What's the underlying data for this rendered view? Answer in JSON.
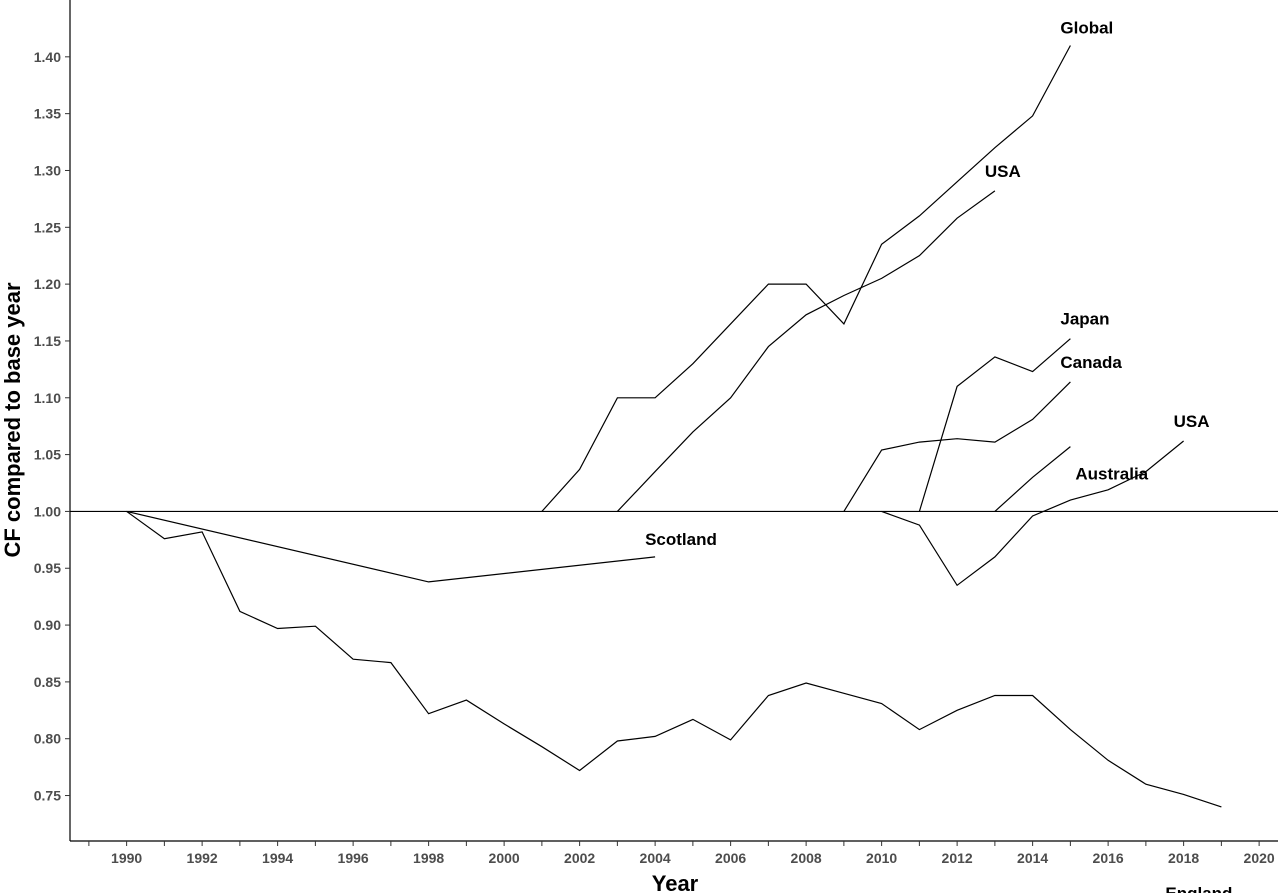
{
  "chart_data": {
    "type": "line",
    "title": "",
    "xlabel": "Year",
    "ylabel": "CF compared to base year",
    "xlim": [
      1988.5,
      2020.5
    ],
    "ylim": [
      0.71,
      1.45
    ],
    "x_ticks": [
      "1990",
      "1992",
      "1994",
      "1996",
      "1998",
      "2000",
      "2002",
      "2004",
      "2006",
      "2008",
      "2010",
      "2012",
      "2014",
      "2016",
      "2018",
      "2020"
    ],
    "y_ticks": [
      "0.75",
      "0.80",
      "0.85",
      "0.90",
      "0.95",
      "1.00",
      "1.05",
      "1.10",
      "1.15",
      "1.20",
      "1.25",
      "1.30",
      "1.35",
      "1.40"
    ],
    "reference_line": 1.0,
    "grid": false,
    "legend": "none",
    "series": [
      {
        "name": "Global",
        "x": [
          2001,
          2002,
          2003,
          2004,
          2005,
          2006,
          2007,
          2008,
          2009,
          2010,
          2011,
          2012,
          2013,
          2014,
          2015
        ],
        "y": [
          1.0,
          1.037,
          1.1,
          1.1,
          1.13,
          1.165,
          1.2,
          1.2,
          1.165,
          1.235,
          1.26,
          1.29,
          1.32,
          1.348,
          1.41
        ]
      },
      {
        "name": "USA",
        "x": [
          2003,
          2004,
          2005,
          2006,
          2007,
          2008,
          2009,
          2010,
          2011,
          2012,
          2013
        ],
        "y": [
          1.0,
          1.035,
          1.07,
          1.1,
          1.145,
          1.173,
          1.19,
          1.205,
          1.225,
          1.258,
          1.282
        ]
      },
      {
        "name": "Japan",
        "x": [
          2011,
          2012,
          2013,
          2014,
          2015
        ],
        "y": [
          1.0,
          1.11,
          1.136,
          1.123,
          1.152
        ]
      },
      {
        "name": "Canada",
        "x": [
          2009,
          2010,
          2011,
          2012,
          2013,
          2014,
          2015
        ],
        "y": [
          1.0,
          1.054,
          1.061,
          1.064,
          1.061,
          1.081,
          1.114
        ]
      },
      {
        "name": "Australia",
        "x": [
          2013,
          2014,
          2015
        ],
        "y": [
          1.0,
          1.03,
          1.057
        ]
      },
      {
        "name": "USA",
        "x": [
          2010,
          2011,
          2012,
          2013,
          2014,
          2015,
          2016,
          2017,
          2018
        ],
        "y": [
          1.0,
          0.988,
          0.935,
          0.96,
          0.996,
          1.01,
          1.019,
          1.035,
          1.062
        ]
      },
      {
        "name": "Scotland",
        "x": [
          1990,
          1998,
          2004
        ],
        "y": [
          1.0,
          0.938,
          0.96
        ]
      },
      {
        "name": "England",
        "x": [
          1990,
          1991,
          1992,
          1993,
          1994,
          1995,
          1996,
          1997,
          1998,
          1999,
          2000,
          2001,
          2002,
          2003,
          2004,
          2005,
          2006,
          2007,
          2008,
          2009,
          2010,
          2011,
          2012,
          2013,
          2014,
          2015,
          2016,
          2017,
          2018,
          2019
        ],
        "y": [
          1.0,
          0.976,
          0.982,
          0.912,
          0.897,
          0.899,
          0.87,
          0.867,
          0.822,
          0.834,
          0.813,
          0.793,
          0.772,
          0.798,
          0.802,
          0.817,
          0.799,
          0.838,
          0.849,
          0.84,
          0.831,
          0.808,
          0.825,
          0.838,
          0.838,
          0.808,
          0.781,
          0.76,
          0.751,
          0.74
        ]
      }
    ]
  }
}
